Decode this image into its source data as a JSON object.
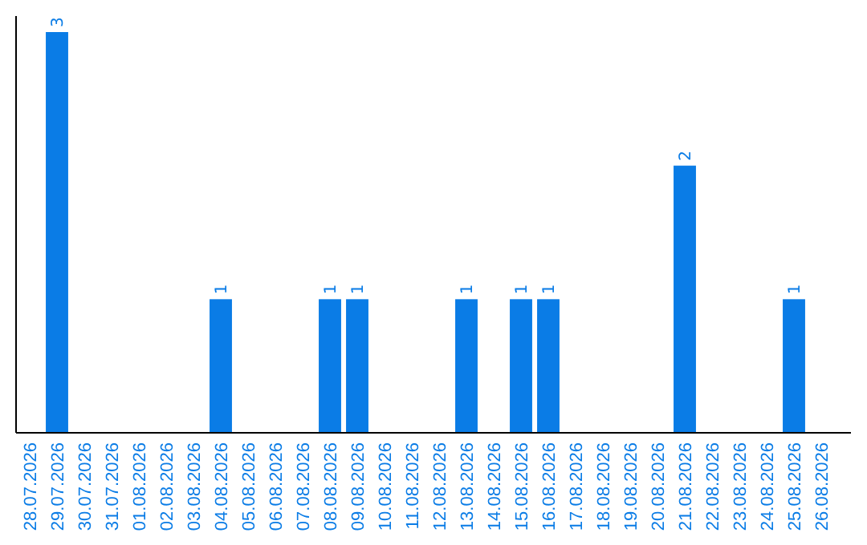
{
  "chart_data": {
    "type": "bar",
    "categories": [
      "28.07.2026",
      "29.07.2026",
      "30.07.2026",
      "31.07.2026",
      "01.08.2026",
      "02.08.2026",
      "03.08.2026",
      "04.08.2026",
      "05.08.2026",
      "06.08.2026",
      "07.08.2026",
      "08.08.2026",
      "09.08.2026",
      "10.08.2026",
      "11.08.2026",
      "12.08.2026",
      "13.08.2026",
      "14.08.2026",
      "15.08.2026",
      "16.08.2026",
      "17.08.2026",
      "18.08.2026",
      "19.08.2026",
      "20.08.2026",
      "21.08.2026",
      "22.08.2026",
      "23.08.2026",
      "24.08.2026",
      "25.08.2026",
      "26.08.2026"
    ],
    "values": [
      0,
      3,
      0,
      0,
      0,
      0,
      0,
      1,
      0,
      0,
      0,
      1,
      1,
      0,
      0,
      0,
      1,
      0,
      1,
      1,
      0,
      0,
      0,
      0,
      2,
      0,
      0,
      0,
      1,
      0
    ],
    "value_labels": [
      null,
      "3",
      null,
      null,
      null,
      null,
      null,
      "1",
      null,
      null,
      null,
      "1",
      "1",
      null,
      null,
      null,
      "1",
      null,
      "1",
      "1",
      null,
      null,
      null,
      null,
      "2",
      null,
      null,
      null,
      "1",
      null
    ],
    "color": "#0a7ce6",
    "relative": false,
    "grid": false
  }
}
